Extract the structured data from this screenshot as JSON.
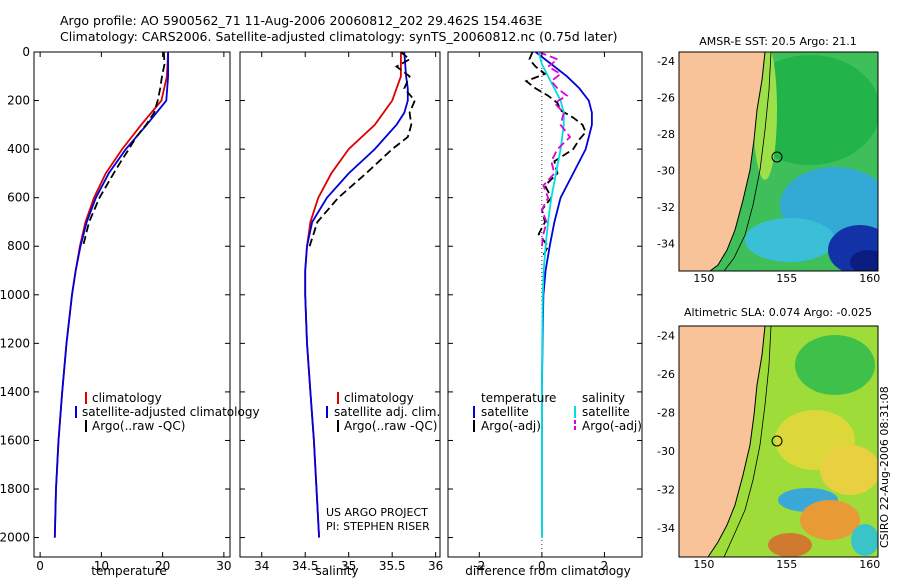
{
  "header": {
    "line1": "Argo profile: AO 5900562_71 11-Aug-2006 20060812_202 29.462S 154.463E",
    "line2": "Climatology: CARS2006. Satellite-adjusted climatology: synTS_20060812.nc (0.75d later)"
  },
  "credit": "CSIRO 22-Aug-2006 08:31:08",
  "colors": {
    "climatology": "#dd0000",
    "satellite": "#0000dd",
    "argo": "#000000",
    "sal_satellite": "#00e0e0",
    "sal_argo": "#dd00dd",
    "land": "#f9c39a"
  },
  "chart_data": [
    {
      "id": "temperature",
      "type": "line",
      "xlabel": "temperature",
      "ylabel": "",
      "xlim": [
        -1,
        31
      ],
      "ylim": [
        2080,
        0
      ],
      "xticks": [
        "0",
        "10",
        "20",
        "30"
      ],
      "yticks": [
        "0",
        "200",
        "400",
        "600",
        "800",
        "1000",
        "1200",
        "1400",
        "1600",
        "1800",
        "2000"
      ],
      "legend": [
        "climatology",
        "satellite-adjusted climatology",
        "Argo(..raw -QC)"
      ],
      "series": [
        {
          "name": "climatology",
          "color": "#dd0000",
          "dash": "",
          "depth": [
            0,
            100,
            200,
            300,
            400,
            500,
            600,
            700,
            800,
            900,
            1000,
            1200,
            1400,
            1600,
            1800,
            2000
          ],
          "values": [
            20.9,
            20.7,
            19.8,
            16.5,
            13.4,
            10.7,
            8.8,
            7.4,
            6.5,
            5.8,
            5.2,
            4.3,
            3.6,
            3.0,
            2.6,
            2.4
          ]
        },
        {
          "name": "satellite-adjusted climatology",
          "color": "#0000dd",
          "dash": "",
          "depth": [
            0,
            100,
            200,
            300,
            400,
            500,
            600,
            700,
            800,
            900,
            1000,
            1200,
            1400,
            1600,
            1800,
            2000
          ],
          "values": [
            20.9,
            20.9,
            20.6,
            17.4,
            14.0,
            11.2,
            9.1,
            7.6,
            6.6,
            5.8,
            5.2,
            4.3,
            3.6,
            3.0,
            2.6,
            2.4
          ]
        },
        {
          "name": "Argo(..raw -QC)",
          "color": "#000000",
          "dash": "8,4",
          "depth": [
            0,
            50,
            100,
            150,
            200,
            250,
            300,
            350,
            400,
            450,
            500,
            600,
            700,
            800
          ],
          "values": [
            20.2,
            20.3,
            19.9,
            19.6,
            19.2,
            18.6,
            17.3,
            15.7,
            14.5,
            13.2,
            12.0,
            9.7,
            8.0,
            7.0
          ]
        }
      ]
    },
    {
      "id": "salinity",
      "type": "line",
      "xlabel": "salinity",
      "ylabel": "",
      "xlim": [
        33.75,
        36.05
      ],
      "ylim": [
        2080,
        0
      ],
      "xticks": [
        "34",
        "34.5",
        "35",
        "35.5",
        "36"
      ],
      "yticks": [],
      "legend": [
        "climatology",
        "satellite adj. clim.",
        "Argo(..raw -QC)"
      ],
      "footnote": [
        "US ARGO PROJECT",
        "PI: STEPHEN RISER"
      ],
      "series": [
        {
          "name": "climatology",
          "color": "#dd0000",
          "dash": "",
          "depth": [
            0,
            100,
            200,
            300,
            400,
            500,
            600,
            700,
            800,
            900,
            1000,
            1200,
            1400,
            1600,
            1800,
            2000
          ],
          "values": [
            35.6,
            35.6,
            35.5,
            35.3,
            35.0,
            34.8,
            34.65,
            34.56,
            34.52,
            34.5,
            34.5,
            34.52,
            34.56,
            34.6,
            34.63,
            34.66
          ]
        },
        {
          "name": "satellite adj. clim.",
          "color": "#0000dd",
          "dash": "",
          "depth": [
            0,
            100,
            150,
            200,
            250,
            300,
            400,
            500,
            600,
            700,
            800,
            900,
            1000,
            1200,
            1400,
            1600,
            1800,
            2000
          ],
          "values": [
            35.64,
            35.66,
            35.68,
            35.68,
            35.64,
            35.55,
            35.3,
            35.0,
            34.75,
            34.58,
            34.52,
            34.5,
            34.5,
            34.52,
            34.56,
            34.6,
            34.63,
            34.66
          ]
        },
        {
          "name": "Argo(..raw -QC)",
          "color": "#000000",
          "dash": "8,4",
          "depth": [
            0,
            30,
            60,
            100,
            150,
            200,
            250,
            300,
            350,
            400,
            450,
            500,
            600,
            700,
            800
          ],
          "values": [
            35.6,
            35.7,
            35.55,
            35.7,
            35.64,
            35.76,
            35.7,
            35.72,
            35.68,
            35.5,
            35.35,
            35.2,
            34.88,
            34.64,
            34.55
          ]
        }
      ]
    },
    {
      "id": "difference",
      "type": "line",
      "xlabel": "difference from climatology",
      "ylabel": "",
      "xlim": [
        -3,
        3.2
      ],
      "ylim": [
        2080,
        0
      ],
      "xticks": [
        "-2",
        "0",
        "2"
      ],
      "yticks": [],
      "legend_left_title": "temperature",
      "legend_right_title": "salinity",
      "legend_left": [
        "satellite",
        "Argo(-adj)"
      ],
      "legend_right": [
        "satellite",
        "Argo(-adj)"
      ],
      "series": [
        {
          "name": "temperature satellite",
          "color": "#0000dd",
          "dash": "",
          "depth": [
            0,
            50,
            100,
            150,
            200,
            250,
            300,
            350,
            400,
            500,
            600,
            700,
            800,
            900,
            1000,
            1200,
            1400,
            1600,
            1800,
            2000
          ],
          "values": [
            -0.2,
            0.3,
            0.8,
            1.2,
            1.5,
            1.6,
            1.6,
            1.5,
            1.4,
            1.0,
            0.6,
            0.4,
            0.25,
            0.12,
            0.05,
            0.02,
            0.0,
            0.0,
            0.0,
            0.0
          ]
        },
        {
          "name": "temperature Argo(-adj)",
          "color": "#000000",
          "dash": "8,4",
          "depth": [
            0,
            30,
            60,
            90,
            120,
            150,
            180,
            210,
            240,
            270,
            300,
            330,
            360,
            400,
            450,
            500,
            550,
            600,
            650,
            700,
            750,
            800,
            850
          ],
          "values": [
            -0.3,
            -0.4,
            -0.2,
            0.1,
            -0.5,
            -0.2,
            0.2,
            0.5,
            0.6,
            1.0,
            1.3,
            1.4,
            1.2,
            1.0,
            0.4,
            0.5,
            0.1,
            0.3,
            0.0,
            0.1,
            -0.1,
            0.2,
            0.0
          ]
        },
        {
          "name": "salinity satellite",
          "color": "#00e0e0",
          "dash": "",
          "depth": [
            0,
            50,
            100,
            150,
            200,
            250,
            300,
            350,
            400,
            500,
            600,
            700,
            800,
            900,
            1000,
            1200,
            1400,
            1600,
            1800,
            2000
          ],
          "values": [
            -0.1,
            0.0,
            0.2,
            0.4,
            0.6,
            0.7,
            0.7,
            0.65,
            0.6,
            0.45,
            0.3,
            0.2,
            0.12,
            0.06,
            0.03,
            0.01,
            0.0,
            0.0,
            0.0,
            0.0
          ]
        },
        {
          "name": "salinity Argo(-adj)",
          "color": "#dd00dd",
          "dash": "8,4",
          "depth": [
            0,
            30,
            60,
            90,
            120,
            150,
            180,
            210,
            250,
            300,
            350,
            400,
            450,
            500,
            550,
            600,
            650,
            700,
            750,
            800
          ],
          "values": [
            -0.1,
            0.5,
            0.2,
            0.6,
            0.3,
            0.5,
            0.8,
            0.4,
            0.7,
            0.6,
            0.9,
            0.5,
            0.3,
            0.4,
            0.05,
            0.2,
            0.0,
            0.15,
            0.05,
            0.0
          ]
        }
      ]
    },
    {
      "id": "sst_map",
      "type": "heatmap",
      "title": "AMSR-E SST: 20.5  Argo: 21.1",
      "xticks": [
        "150",
        "155",
        "160"
      ],
      "yticks": [
        "-24",
        "-26",
        "-28",
        "-30",
        "-32",
        "-34"
      ],
      "xlim": [
        148.5,
        160.5
      ],
      "ylim": [
        -35.5,
        -23.5
      ],
      "float_lon": 154.46,
      "float_lat": -29.46
    },
    {
      "id": "sla_map",
      "type": "heatmap",
      "title": "Altimetric SLA: 0.074  Argo: -0.025",
      "xticks": [
        "150",
        "155",
        "160"
      ],
      "yticks": [
        "-24",
        "-26",
        "-28",
        "-30",
        "-32",
        "-34"
      ],
      "xlim": [
        148.5,
        160.5
      ],
      "ylim": [
        -35.5,
        -23.5
      ],
      "float_lon": 154.46,
      "float_lat": -29.46
    }
  ]
}
